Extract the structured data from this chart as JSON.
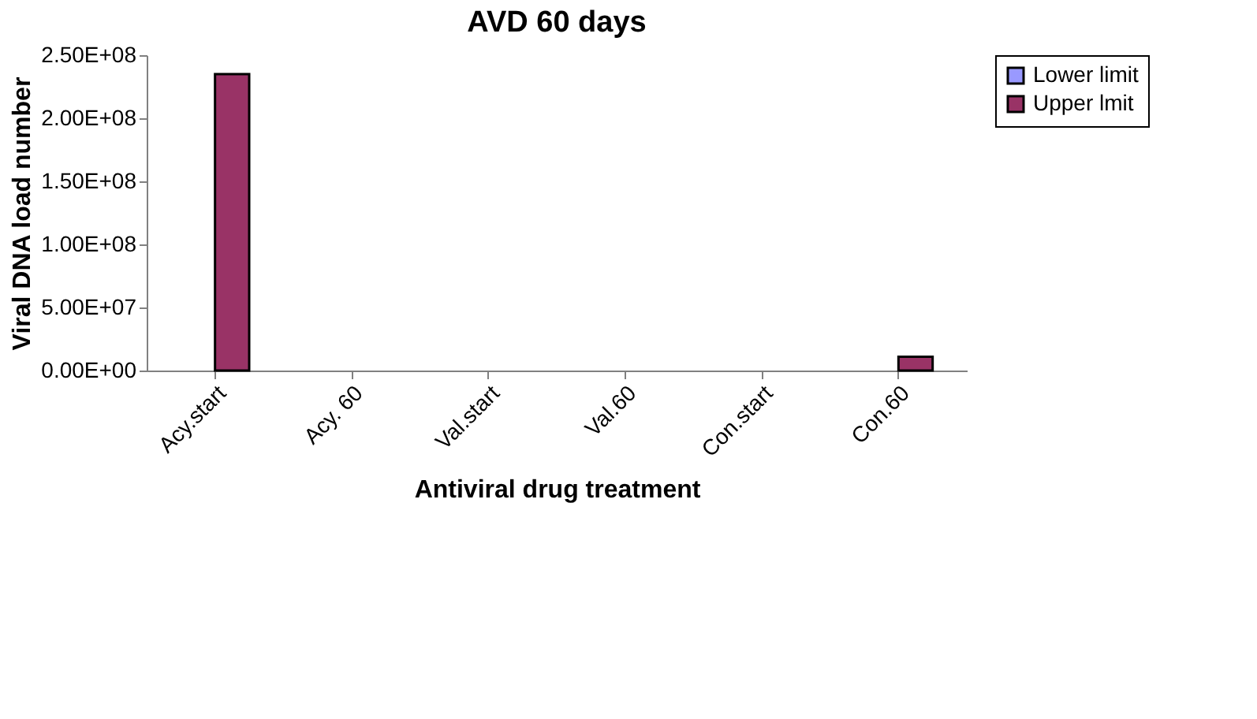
{
  "chart_data": {
    "type": "bar",
    "title": "AVD 60 days",
    "xlabel": "Antiviral drug treatment",
    "ylabel": "Viral DNA load number",
    "categories": [
      "Acy.start",
      "Acy. 60",
      "Val.start",
      "Val.60",
      "Con.start",
      "Con.60"
    ],
    "series": [
      {
        "name": "Lower limit",
        "color": "#9999ff",
        "values": [
          null,
          null,
          null,
          null,
          null,
          null
        ]
      },
      {
        "name": "Upper lmit",
        "color": "#993366",
        "values": [
          235000000,
          null,
          null,
          null,
          null,
          11000000
        ]
      }
    ],
    "ylim": [
      0,
      250000000
    ],
    "yticks": [
      {
        "value": 0,
        "label": "0.00E+00"
      },
      {
        "value": 50000000,
        "label": "5.00E+07"
      },
      {
        "value": 100000000,
        "label": "1.00E+08"
      },
      {
        "value": 150000000,
        "label": "1.50E+08"
      },
      {
        "value": 200000000,
        "label": "2.00E+08"
      },
      {
        "value": 250000000,
        "label": "2.50E+08"
      }
    ],
    "grid": false,
    "legend": "right"
  }
}
